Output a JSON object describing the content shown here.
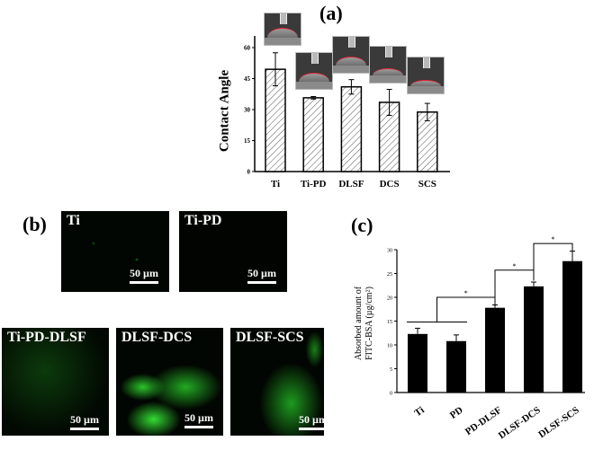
{
  "panels": {
    "a": {
      "label": "(a)"
    },
    "b": {
      "label": "(b)",
      "images": [
        {
          "label": "Ti",
          "scale": "50 µm"
        },
        {
          "label": "Ti-PD",
          "scale": "50 µm"
        },
        {
          "label": "Ti-PD-DLSF",
          "scale": "50 µm"
        },
        {
          "label": "DLSF-DCS",
          "scale": "50 µm"
        },
        {
          "label": "DLSF-SCS",
          "scale": "50 µm"
        }
      ]
    },
    "c": {
      "label": "(c)"
    }
  },
  "chart_data": [
    {
      "id": "a",
      "type": "bar",
      "title": "",
      "xlabel": "",
      "ylabel": "Contact Angle",
      "categories": [
        "Ti",
        "Ti-PD",
        "DLSF",
        "DCS",
        "SCS"
      ],
      "values": [
        49.5,
        35.7,
        41.0,
        33.5,
        28.8
      ],
      "errors": [
        8.0,
        0.6,
        3.5,
        6.3,
        4.2
      ],
      "ylim": [
        0,
        65
      ],
      "yticks": [
        0,
        15,
        30,
        45,
        60
      ],
      "bar_fill": "hatched",
      "insets": "water droplet images above each bar",
      "grid": false
    },
    {
      "id": "c",
      "type": "bar",
      "title": "",
      "xlabel": "",
      "ylabel": "Absorbed amount of FITC-BSA (µg/cm²)",
      "ylabel_lines": [
        "Absorbed amount of",
        "FITC-BSA (µg/cm²)"
      ],
      "categories": [
        "Ti",
        "PD",
        "PD-DLSF",
        "DLSF-DCS",
        "DLSF-SCS"
      ],
      "values": [
        12.3,
        10.8,
        17.8,
        22.3,
        27.6
      ],
      "errors": [
        1.2,
        1.3,
        0.6,
        0.9,
        2.1
      ],
      "ylim": [
        0,
        30
      ],
      "yticks": [
        0,
        5,
        10,
        15,
        20,
        25,
        30
      ],
      "bar_fill": "#000000",
      "significance": [
        {
          "groups": [
            "Ti+PD",
            "PD-DLSF"
          ],
          "label": "*"
        },
        {
          "groups": [
            "PD-DLSF",
            "DLSF-DCS"
          ],
          "label": "*"
        },
        {
          "groups": [
            "DLSF-DCS",
            "DLSF-SCS"
          ],
          "label": "*"
        }
      ],
      "grid": false
    }
  ]
}
